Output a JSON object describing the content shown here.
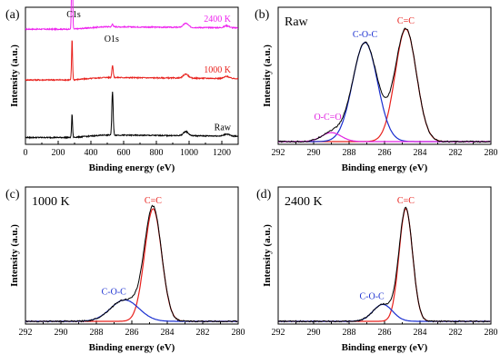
{
  "colors": {
    "black": "#000000",
    "red": "#e8201c",
    "blue": "#1a2fd0",
    "magenta": "#e020e0",
    "spec_2400": "#ee22ee",
    "spec_1000": "#e8201c",
    "spec_raw": "#000000"
  },
  "chart_data": [
    {
      "panel": "(a)",
      "type": "line",
      "xlabel": "Binding energy (eV)",
      "ylabel": "Intensity (a.u.)",
      "xlim": [
        0,
        1300
      ],
      "xticks": [
        0,
        200,
        400,
        600,
        800,
        1000,
        1200
      ],
      "y_ticks_shown": false,
      "peak_labels": [
        "C1s",
        "O1s"
      ],
      "series": [
        {
          "name": "2400 K",
          "color": "#ee22ee",
          "baseline": 0.84,
          "peaks": [
            {
              "x": 284.8,
              "h": 0.74,
              "w": 3
            },
            {
              "x": 532,
              "h": 0.02,
              "w": 4
            }
          ]
        },
        {
          "name": "1000 K",
          "color": "#e8201c",
          "baseline": 0.47,
          "peaks": [
            {
              "x": 284.8,
              "h": 0.3,
              "w": 3
            },
            {
              "x": 532,
              "h": 0.09,
              "w": 4
            }
          ]
        },
        {
          "name": "Raw",
          "color": "#000000",
          "baseline": 0.05,
          "peaks": [
            {
              "x": 284.8,
              "h": 0.17,
              "w": 3
            },
            {
              "x": 532,
              "h": 0.32,
              "w": 4
            }
          ]
        }
      ]
    },
    {
      "panel": "(b)",
      "type": "line",
      "condition": "Raw",
      "xlabel": "Binding energy (eV)",
      "ylabel": "Intensity (a.u.)",
      "xlim": [
        292,
        280
      ],
      "xticks": [
        292,
        290,
        288,
        286,
        284,
        282,
        280
      ],
      "y_ticks_shown": false,
      "peak_labels": [
        {
          "text": "C=C",
          "color": "#e8201c",
          "x": 284.8
        },
        {
          "text": "C-O-C",
          "color": "#1a2fd0",
          "x": 287.1
        },
        {
          "text": "O-C=O",
          "color": "#e020e0",
          "x": 289.0
        }
      ],
      "components": [
        {
          "name": "C=C",
          "color": "#e8201c",
          "center": 284.8,
          "height": 1.0,
          "sigma": 0.6
        },
        {
          "name": "C-O-C",
          "color": "#1a2fd0",
          "center": 287.1,
          "height": 0.88,
          "sigma": 0.7
        },
        {
          "name": "O-C=O",
          "color": "#e020e0",
          "center": 289.0,
          "height": 0.08,
          "sigma": 0.55
        }
      ]
    },
    {
      "panel": "(c)",
      "type": "line",
      "condition": "1000 K",
      "xlabel": "Binding energy (eV)",
      "ylabel": "Intensity (a.u.)",
      "xlim": [
        292,
        280
      ],
      "xticks": [
        292,
        290,
        288,
        286,
        284,
        282,
        280
      ],
      "y_ticks_shown": false,
      "peak_labels": [
        {
          "text": "C=C",
          "color": "#e8201c",
          "x": 284.8
        },
        {
          "text": "C-O-C",
          "color": "#1a2fd0",
          "x": 286.5
        }
      ],
      "components": [
        {
          "name": "C=C",
          "color": "#e8201c",
          "center": 284.8,
          "height": 1.0,
          "sigma": 0.48
        },
        {
          "name": "C-O-C",
          "color": "#1a2fd0",
          "center": 286.4,
          "height": 0.19,
          "sigma": 0.8
        }
      ]
    },
    {
      "panel": "(d)",
      "type": "line",
      "condition": "2400 K",
      "xlabel": "Binding energy (eV)",
      "ylabel": "Intensity (a.u.)",
      "xlim": [
        292,
        280
      ],
      "xticks": [
        292,
        290,
        288,
        286,
        284,
        282,
        280
      ],
      "y_ticks_shown": false,
      "peak_labels": [
        {
          "text": "C=C",
          "color": "#e8201c",
          "x": 284.8
        },
        {
          "text": "C-O-C",
          "color": "#1a2fd0",
          "x": 286.2
        }
      ],
      "components": [
        {
          "name": "C=C",
          "color": "#e8201c",
          "center": 284.8,
          "height": 1.0,
          "sigma": 0.38
        },
        {
          "name": "C-O-C",
          "color": "#1a2fd0",
          "center": 286.1,
          "height": 0.15,
          "sigma": 0.55
        }
      ]
    }
  ]
}
